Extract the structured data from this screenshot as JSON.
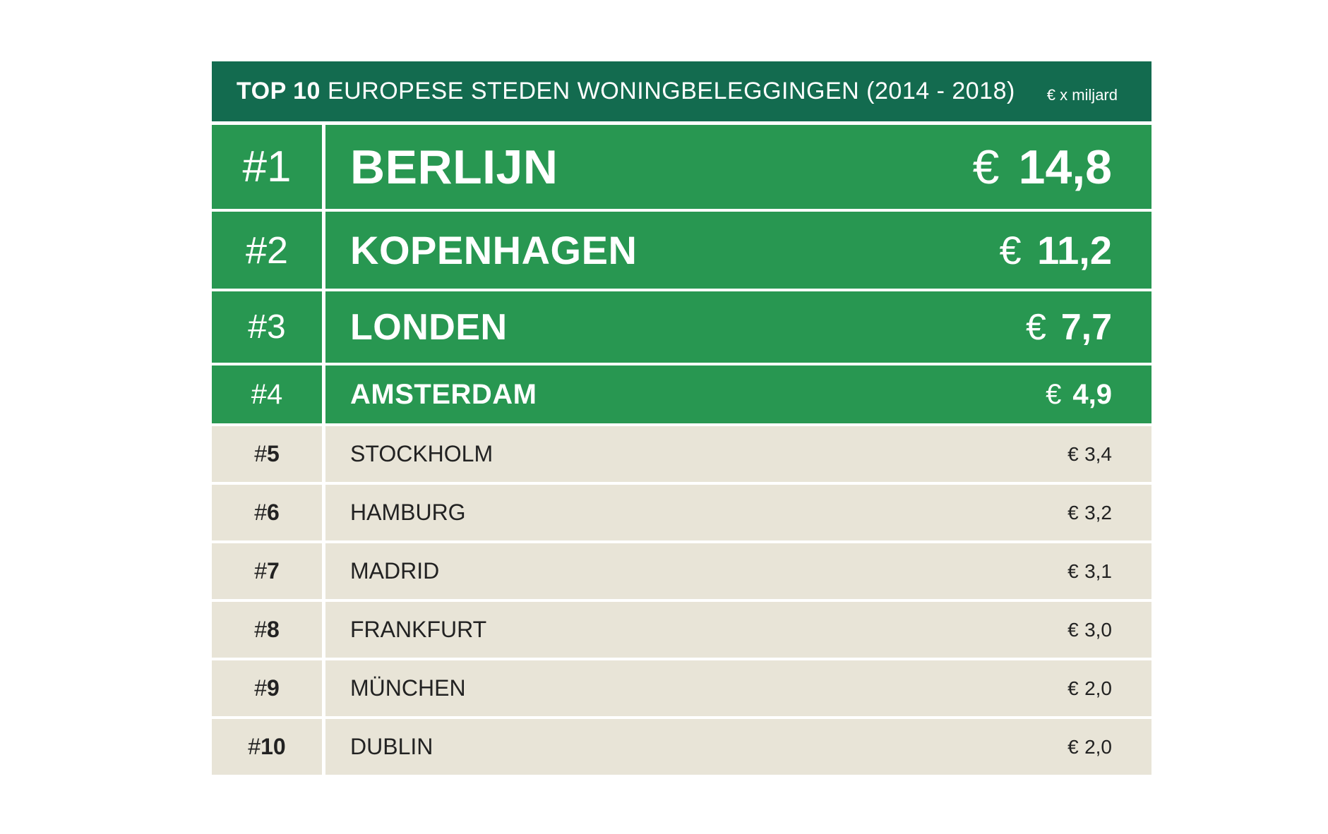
{
  "chart_data": {
    "type": "table",
    "title_bold": "TOP 10",
    "title": "EUROPESE STEDEN WONINGBELEGGINGEN (2014 - 2018)",
    "unit": "€ x miljard",
    "currency": "€",
    "colors": {
      "header": "#136b4f",
      "highlight": "#289751",
      "rest": "#e8e4d7"
    },
    "rows": [
      {
        "rank": "1",
        "city": "BERLIJN",
        "value": "14,8"
      },
      {
        "rank": "2",
        "city": "KOPENHAGEN",
        "value": "11,2"
      },
      {
        "rank": "3",
        "city": "LONDEN",
        "value": "7,7"
      },
      {
        "rank": "4",
        "city": "AMSTERDAM",
        "value": "4,9"
      },
      {
        "rank": "5",
        "city": "STOCKHOLM",
        "value": "3,4"
      },
      {
        "rank": "6",
        "city": "HAMBURG",
        "value": "3,2"
      },
      {
        "rank": "7",
        "city": "MADRID",
        "value": "3,1"
      },
      {
        "rank": "8",
        "city": "FRANKFURT",
        "value": "3,0"
      },
      {
        "rank": "9",
        "city": "MÜNCHEN",
        "value": "2,0"
      },
      {
        "rank": "10",
        "city": "DUBLIN",
        "value": "2,0"
      }
    ]
  }
}
